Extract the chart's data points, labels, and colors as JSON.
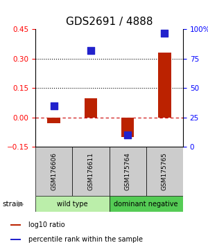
{
  "title": "GDS2691 / 4888",
  "samples": [
    "GSM176606",
    "GSM176611",
    "GSM175764",
    "GSM175765"
  ],
  "log10_ratio": [
    -0.03,
    0.1,
    -0.1,
    0.33
  ],
  "percentile_rank": [
    35,
    82,
    10,
    97
  ],
  "groups": [
    {
      "label": "wild type",
      "samples": [
        0,
        1
      ],
      "color": "#bbeeaa"
    },
    {
      "label": "dominant negative",
      "samples": [
        2,
        3
      ],
      "color": "#55cc55"
    }
  ],
  "ylim_left": [
    -0.15,
    0.45
  ],
  "ylim_right": [
    0,
    100
  ],
  "yticks_left": [
    -0.15,
    0.0,
    0.15,
    0.3,
    0.45
  ],
  "yticks_right": [
    0,
    25,
    50,
    75,
    100
  ],
  "hlines_dotted": [
    0.15,
    0.3
  ],
  "hline_dashed": 0.0,
  "bar_color": "#bb2200",
  "dot_color": "#2222cc",
  "bar_width": 0.35,
  "dot_size": 45,
  "legend_items": [
    "log10 ratio",
    "percentile rank within the sample"
  ],
  "legend_colors": [
    "#bb2200",
    "#2222cc"
  ],
  "sample_box_color": "#cccccc",
  "title_fontsize": 11,
  "tick_fontsize": 7.5,
  "sample_fontsize": 6.5,
  "group_fontsize": 7,
  "legend_fontsize": 7
}
